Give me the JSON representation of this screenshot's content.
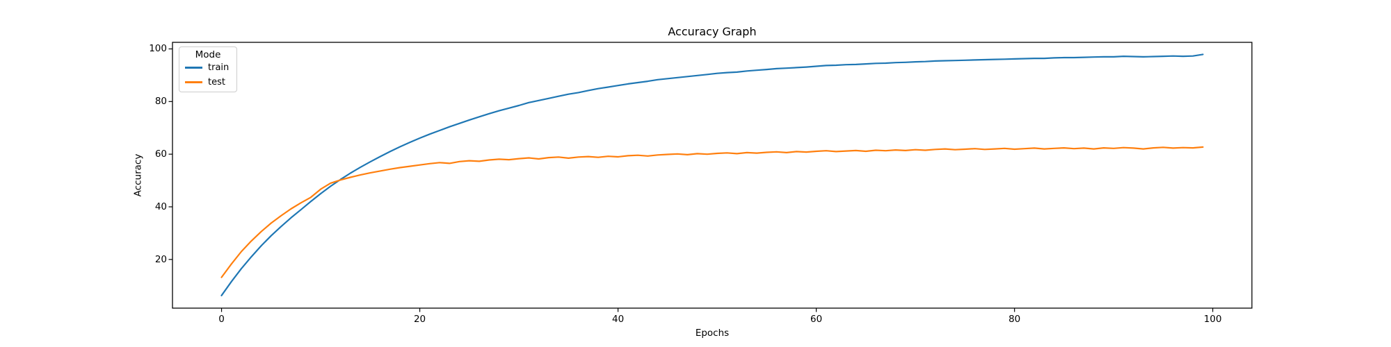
{
  "chart_data": {
    "type": "line",
    "title": "Accuracy Graph",
    "xlabel": "Epochs",
    "ylabel": "Accuracy",
    "xticks": [
      0,
      20,
      40,
      60,
      80,
      100
    ],
    "yticks": [
      20,
      40,
      60,
      80,
      100
    ],
    "xlim": [
      -4.95,
      103.95
    ],
    "ylim": [
      1.5,
      102.5
    ],
    "grid": false,
    "background": "#ffffff",
    "spine_color": "#000000",
    "legend": {
      "title": "Mode",
      "position": "upper left"
    },
    "x": [
      0,
      1,
      2,
      3,
      4,
      5,
      6,
      7,
      8,
      9,
      10,
      11,
      12,
      13,
      14,
      15,
      16,
      17,
      18,
      19,
      20,
      21,
      22,
      23,
      24,
      25,
      26,
      27,
      28,
      29,
      30,
      31,
      32,
      33,
      34,
      35,
      36,
      37,
      38,
      39,
      40,
      41,
      42,
      43,
      44,
      45,
      46,
      47,
      48,
      49,
      50,
      51,
      52,
      53,
      54,
      55,
      56,
      57,
      58,
      59,
      60,
      61,
      62,
      63,
      64,
      65,
      66,
      67,
      68,
      69,
      70,
      71,
      72,
      73,
      74,
      75,
      76,
      77,
      78,
      79,
      80,
      81,
      82,
      83,
      84,
      85,
      86,
      87,
      88,
      89,
      90,
      91,
      92,
      93,
      94,
      95,
      96,
      97,
      98,
      99
    ],
    "series": [
      {
        "name": "train",
        "color": "#1f77b4",
        "values": [
          6.3,
          11.6,
          16.5,
          21.0,
          25.2,
          29.0,
          32.5,
          35.8,
          38.9,
          42.0,
          45.0,
          47.8,
          50.4,
          52.8,
          55.0,
          57.1,
          59.1,
          61.0,
          62.8,
          64.5,
          66.1,
          67.6,
          69.0,
          70.4,
          71.7,
          73.0,
          74.2,
          75.4,
          76.5,
          77.5,
          78.5,
          79.6,
          80.4,
          81.2,
          82.0,
          82.8,
          83.4,
          84.2,
          84.9,
          85.5,
          86.1,
          86.7,
          87.2,
          87.7,
          88.3,
          88.7,
          89.1,
          89.5,
          89.9,
          90.3,
          90.7,
          91.0,
          91.2,
          91.6,
          91.9,
          92.2,
          92.5,
          92.7,
          92.9,
          93.1,
          93.4,
          93.7,
          93.8,
          94.0,
          94.1,
          94.3,
          94.5,
          94.6,
          94.8,
          94.9,
          95.1,
          95.2,
          95.4,
          95.5,
          95.6,
          95.7,
          95.8,
          95.9,
          96.0,
          96.1,
          96.2,
          96.3,
          96.4,
          96.4,
          96.6,
          96.7,
          96.7,
          96.8,
          96.9,
          97.0,
          97.0,
          97.2,
          97.1,
          97.0,
          97.1,
          97.2,
          97.3,
          97.2,
          97.3,
          97.9
        ]
      },
      {
        "name": "test",
        "color": "#ff7f0e",
        "values": [
          13.2,
          18.3,
          23.0,
          27.0,
          30.6,
          33.8,
          36.6,
          39.2,
          41.5,
          43.6,
          46.7,
          49.0,
          50.2,
          51.2,
          52.1,
          52.9,
          53.6,
          54.3,
          54.9,
          55.4,
          55.9,
          56.4,
          56.8,
          56.5,
          57.2,
          57.5,
          57.3,
          57.8,
          58.1,
          57.9,
          58.3,
          58.6,
          58.2,
          58.7,
          58.9,
          58.5,
          58.9,
          59.1,
          58.8,
          59.2,
          59.0,
          59.4,
          59.6,
          59.3,
          59.7,
          59.9,
          60.1,
          59.8,
          60.2,
          60.0,
          60.3,
          60.5,
          60.2,
          60.6,
          60.4,
          60.7,
          60.9,
          60.6,
          61.0,
          60.8,
          61.1,
          61.3,
          61.0,
          61.2,
          61.4,
          61.1,
          61.5,
          61.3,
          61.6,
          61.4,
          61.7,
          61.5,
          61.8,
          62.0,
          61.7,
          61.9,
          62.1,
          61.8,
          62.0,
          62.2,
          61.9,
          62.1,
          62.3,
          62.0,
          62.2,
          62.4,
          62.1,
          62.3,
          62.0,
          62.4,
          62.2,
          62.5,
          62.3,
          62.0,
          62.4,
          62.6,
          62.3,
          62.5,
          62.4,
          62.7
        ]
      }
    ]
  }
}
